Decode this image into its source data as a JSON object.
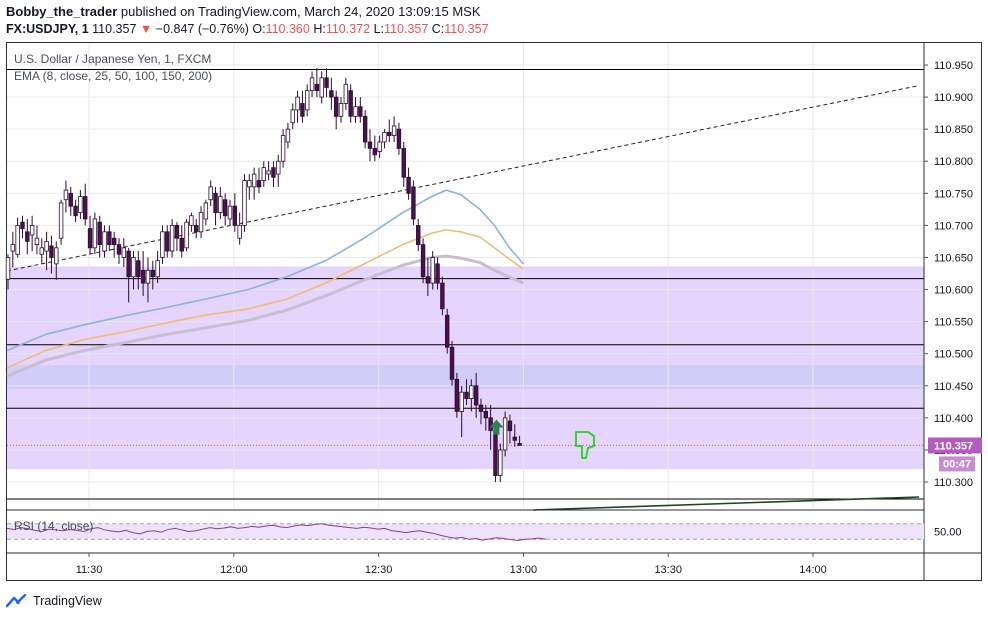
{
  "header": {
    "publisher": "Bobby_the_trader",
    "published_text": "published on TradingView.com, March 24, 2020 13:09:15 MSK",
    "symbol": "FX:USDJPY, 1",
    "last": "110.357",
    "change_arrow": "▼",
    "change": "−0.847 (−0.76%)",
    "o_label": "O:",
    "o": "110.360",
    "h_label": "H:",
    "h": "110.372",
    "l_label": "L:",
    "l": "110.357",
    "c_label": "C:",
    "c": "110.357"
  },
  "legend": {
    "instrument": "U.S. Dollar / Japanese Yen, 1, FXCM",
    "ema": "EMA (8, close, 25, 50, 100, 150, 200)",
    "rsi": "RSI (14, close)"
  },
  "footer": {
    "brand": "TradingView"
  },
  "colors": {
    "up": "#ffffff",
    "down": "#4a1050",
    "zone": "#e1cdfa",
    "zone_blue": "#cfcbf7",
    "ema_blue": "#8fb0e6",
    "ema_orange": "#f1bb78",
    "ema_gray": "#c7bfd1",
    "price_label": "#b65ac0",
    "rsi": "#8b3d9a",
    "arrow_green": "#2f8052",
    "thumb_green": "#39d130"
  },
  "chart_data": {
    "type": "candlestick",
    "price_axis": {
      "ticks": [
        "110.950",
        "110.900",
        "110.850",
        "110.800",
        "110.750",
        "110.700",
        "110.650",
        "110.600",
        "110.550",
        "110.500",
        "110.450",
        "110.400",
        "110.350",
        "110.300"
      ],
      "range": [
        110.275,
        110.97
      ]
    },
    "time_axis": {
      "ticks": [
        "11:30",
        "12:00",
        "12:30",
        "13:00",
        "13:30",
        "14:00"
      ],
      "start": "11:13",
      "end": "14:23"
    },
    "current_price_label": "110.357",
    "countdown_label": "00:47",
    "horizontal_levels": [
      110.943,
      110.617,
      110.514,
      110.415,
      110.27
    ],
    "zones": [
      {
        "from": 110.32,
        "to": 110.636,
        "color": "zone"
      },
      {
        "from": 110.445,
        "to": 110.482,
        "color": "zone_blue"
      }
    ],
    "trendline_dashed": {
      "from": [
        "11:13",
        110.629
      ],
      "to": [
        "14:22",
        110.918
      ]
    },
    "trendline_solid": {
      "from": [
        "13:02",
        110.26
      ],
      "to": [
        "14:22",
        110.277
      ]
    },
    "candles_ohlc": [
      [
        110.616,
        110.655,
        110.6,
        110.65
      ],
      [
        110.66,
        110.69,
        110.635,
        110.67
      ],
      [
        110.655,
        110.712,
        110.65,
        110.7
      ],
      [
        110.705,
        110.715,
        110.68,
        110.695
      ],
      [
        110.69,
        110.71,
        110.655,
        110.675
      ],
      [
        110.685,
        110.715,
        110.66,
        110.7
      ],
      [
        110.67,
        110.7,
        110.655,
        110.68
      ],
      [
        110.655,
        110.68,
        110.64,
        110.665
      ],
      [
        110.66,
        110.69,
        110.63,
        110.675
      ],
      [
        110.668,
        110.684,
        110.625,
        110.65
      ],
      [
        110.64,
        110.675,
        110.615,
        110.665
      ],
      [
        110.68,
        110.74,
        110.67,
        110.735
      ],
      [
        110.74,
        110.77,
        110.72,
        110.755
      ],
      [
        110.75,
        110.76,
        110.715,
        110.73
      ],
      [
        110.73,
        110.74,
        110.705,
        110.715
      ],
      [
        110.72,
        110.755,
        110.71,
        110.745
      ],
      [
        110.745,
        110.765,
        110.7,
        110.71
      ],
      [
        110.695,
        110.715,
        110.655,
        110.665
      ],
      [
        110.665,
        110.72,
        110.655,
        110.71
      ],
      [
        110.705,
        110.715,
        110.65,
        110.67
      ],
      [
        110.66,
        110.7,
        110.65,
        110.69
      ],
      [
        110.69,
        110.7,
        110.66,
        110.67
      ],
      [
        110.68,
        110.69,
        110.65,
        110.67
      ],
      [
        110.67,
        110.68,
        110.64,
        110.655
      ],
      [
        110.65,
        110.68,
        110.635,
        110.665
      ],
      [
        110.66,
        110.665,
        110.58,
        110.62
      ],
      [
        110.62,
        110.66,
        110.6,
        110.65
      ],
      [
        110.645,
        110.66,
        110.6,
        110.62
      ],
      [
        110.63,
        110.66,
        110.59,
        110.61
      ],
      [
        110.61,
        110.65,
        110.58,
        110.63
      ],
      [
        110.63,
        110.645,
        110.6,
        110.62
      ],
      [
        110.62,
        110.66,
        110.61,
        110.645
      ],
      [
        110.65,
        110.7,
        110.64,
        110.69
      ],
      [
        110.69,
        110.7,
        110.65,
        110.66
      ],
      [
        110.66,
        110.71,
        110.65,
        110.7
      ],
      [
        110.7,
        110.705,
        110.66,
        110.68
      ],
      [
        110.68,
        110.7,
        110.65,
        110.66
      ],
      [
        110.665,
        110.71,
        110.66,
        110.705
      ],
      [
        110.7,
        110.72,
        110.69,
        110.715
      ],
      [
        110.7,
        110.71,
        110.68,
        110.69
      ],
      [
        110.69,
        110.73,
        110.68,
        110.72
      ],
      [
        110.71,
        110.74,
        110.7,
        110.735
      ],
      [
        110.74,
        110.77,
        110.73,
        110.76
      ],
      [
        110.75,
        110.76,
        110.7,
        110.72
      ],
      [
        110.72,
        110.76,
        110.71,
        110.745
      ],
      [
        110.74,
        110.75,
        110.7,
        110.715
      ],
      [
        110.71,
        110.74,
        110.7,
        110.73
      ],
      [
        110.73,
        110.75,
        110.69,
        110.7
      ],
      [
        110.68,
        110.72,
        110.67,
        110.7
      ],
      [
        110.7,
        110.78,
        110.69,
        110.77
      ],
      [
        110.76,
        110.78,
        110.74,
        110.77
      ],
      [
        110.76,
        110.79,
        110.74,
        110.78
      ],
      [
        110.77,
        110.79,
        110.75,
        110.76
      ],
      [
        110.77,
        110.8,
        110.76,
        110.79
      ],
      [
        110.78,
        110.8,
        110.77,
        110.785
      ],
      [
        110.79,
        110.8,
        110.76,
        110.775
      ],
      [
        110.78,
        110.81,
        110.76,
        110.8
      ],
      [
        110.8,
        110.85,
        110.79,
        110.84
      ],
      [
        110.83,
        110.86,
        110.82,
        110.85
      ],
      [
        110.86,
        110.89,
        110.85,
        110.88
      ],
      [
        110.88,
        110.91,
        110.86,
        110.9
      ],
      [
        110.89,
        110.91,
        110.86,
        110.87
      ],
      [
        110.88,
        110.92,
        110.87,
        110.91
      ],
      [
        110.91,
        110.94,
        110.9,
        110.93
      ],
      [
        110.92,
        110.945,
        110.9,
        110.91
      ],
      [
        110.9,
        110.94,
        110.89,
        110.93
      ],
      [
        110.93,
        110.945,
        110.9,
        110.915
      ],
      [
        110.91,
        110.93,
        110.88,
        110.9
      ],
      [
        110.9,
        110.91,
        110.85,
        110.87
      ],
      [
        110.87,
        110.9,
        110.86,
        110.89
      ],
      [
        110.89,
        110.93,
        110.88,
        110.92
      ],
      [
        110.91,
        110.92,
        110.86,
        110.87
      ],
      [
        110.87,
        110.9,
        110.86,
        110.885
      ],
      [
        110.885,
        110.9,
        110.86,
        110.87
      ],
      [
        110.87,
        110.88,
        110.82,
        110.83
      ],
      [
        110.83,
        110.85,
        110.8,
        110.82
      ],
      [
        110.82,
        110.84,
        110.8,
        110.81
      ],
      [
        110.815,
        110.84,
        110.805,
        110.83
      ],
      [
        110.83,
        110.85,
        110.82,
        110.845
      ],
      [
        110.845,
        110.865,
        110.83,
        110.84
      ],
      [
        110.84,
        110.87,
        110.83,
        110.855
      ],
      [
        110.85,
        110.86,
        110.81,
        110.82
      ],
      [
        110.82,
        110.83,
        110.76,
        110.775
      ],
      [
        110.775,
        110.79,
        110.74,
        110.75
      ],
      [
        110.76,
        110.77,
        110.7,
        110.71
      ],
      [
        110.7,
        110.71,
        110.66,
        110.67
      ],
      [
        110.67,
        110.68,
        110.61,
        110.62
      ],
      [
        110.62,
        110.65,
        110.59,
        110.61
      ],
      [
        110.61,
        110.66,
        110.6,
        110.65
      ],
      [
        110.64,
        110.65,
        110.6,
        110.61
      ],
      [
        110.61,
        110.62,
        110.56,
        110.57
      ],
      [
        110.56,
        110.57,
        110.5,
        110.51
      ],
      [
        110.51,
        110.52,
        110.45,
        110.46
      ],
      [
        110.46,
        110.47,
        110.4,
        110.41
      ],
      [
        110.41,
        110.45,
        110.37,
        110.44
      ],
      [
        110.44,
        110.46,
        110.42,
        110.43
      ],
      [
        110.43,
        110.46,
        110.41,
        110.45
      ],
      [
        110.45,
        110.47,
        110.4,
        110.42
      ],
      [
        110.42,
        110.43,
        110.39,
        110.41
      ],
      [
        110.41,
        110.42,
        110.38,
        110.4
      ],
      [
        110.4,
        110.42,
        110.35,
        110.38
      ],
      [
        110.38,
        110.39,
        110.3,
        110.31
      ],
      [
        110.31,
        110.36,
        110.3,
        110.35
      ],
      [
        110.35,
        110.41,
        110.34,
        110.4
      ],
      [
        110.395,
        110.405,
        110.36,
        110.38
      ],
      [
        110.37,
        110.39,
        110.355,
        110.365
      ],
      [
        110.36,
        110.372,
        110.357,
        110.357
      ]
    ],
    "ema_series": {
      "blue": [
        [
          110.505,
          0
        ],
        [
          110.53,
          8
        ],
        [
          110.545,
          16
        ],
        [
          110.56,
          25
        ],
        [
          110.572,
          33
        ],
        [
          110.585,
          41
        ],
        [
          110.6,
          50
        ],
        [
          110.62,
          58
        ],
        [
          110.645,
          66
        ],
        [
          110.68,
          74
        ],
        [
          110.72,
          82
        ],
        [
          110.745,
          88
        ],
        [
          110.755,
          91
        ],
        [
          110.748,
          94
        ],
        [
          110.725,
          98
        ],
        [
          110.7,
          101
        ],
        [
          110.666,
          104
        ],
        [
          110.64,
          107
        ]
      ],
      "orange": [
        [
          110.478,
          0
        ],
        [
          110.505,
          8
        ],
        [
          110.522,
          16
        ],
        [
          110.535,
          25
        ],
        [
          110.548,
          33
        ],
        [
          110.56,
          41
        ],
        [
          110.57,
          50
        ],
        [
          110.585,
          58
        ],
        [
          110.61,
          66
        ],
        [
          110.64,
          74
        ],
        [
          110.67,
          82
        ],
        [
          110.688,
          88
        ],
        [
          110.693,
          91
        ],
        [
          110.69,
          94
        ],
        [
          110.682,
          98
        ],
        [
          110.665,
          101
        ],
        [
          110.648,
          104
        ],
        [
          110.632,
          107
        ]
      ],
      "gray": [
        [
          110.465,
          0
        ],
        [
          110.49,
          8
        ],
        [
          110.505,
          16
        ],
        [
          110.518,
          25
        ],
        [
          110.53,
          33
        ],
        [
          110.54,
          41
        ],
        [
          110.552,
          50
        ],
        [
          110.568,
          58
        ],
        [
          110.59,
          66
        ],
        [
          110.615,
          74
        ],
        [
          110.638,
          82
        ],
        [
          110.65,
          88
        ],
        [
          110.652,
          91
        ],
        [
          110.649,
          94
        ],
        [
          110.642,
          98
        ],
        [
          110.63,
          101
        ],
        [
          110.62,
          104
        ],
        [
          110.61,
          107
        ]
      ]
    },
    "rsi": {
      "ticks": [
        "50.00"
      ],
      "range": [
        0,
        100
      ],
      "bands": [
        30,
        70
      ],
      "values": [
        58,
        55,
        60,
        57,
        53,
        50,
        56,
        54,
        52,
        55,
        53,
        50,
        57,
        60,
        54,
        51,
        49,
        53,
        47,
        44,
        50,
        52,
        48,
        55,
        58,
        54,
        50,
        52,
        56,
        60,
        57,
        59,
        62,
        58,
        60,
        63,
        61,
        64,
        66,
        62,
        60,
        64,
        67,
        65,
        68,
        70,
        66,
        64,
        62,
        60,
        58,
        61,
        59,
        56,
        58,
        52,
        50,
        47,
        50,
        52,
        48,
        45,
        40,
        36,
        33,
        35,
        30,
        32,
        28,
        31,
        34,
        32,
        29,
        27,
        30,
        31,
        33,
        30
      ]
    }
  }
}
